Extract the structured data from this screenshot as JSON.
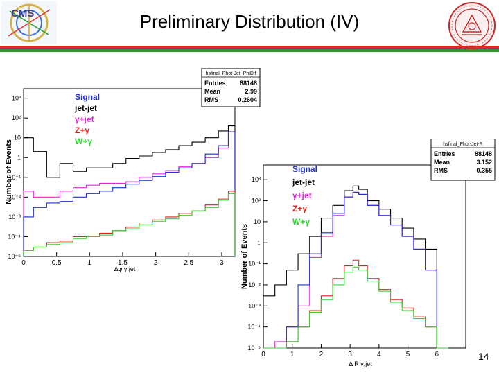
{
  "slide": {
    "title": "Preliminary Distribution (IV)",
    "page_number": "14",
    "logo_left": "CMS",
    "rule_colors": {
      "red": "#d42a2a",
      "green": "#2f9a2a"
    }
  },
  "chart_data": [
    {
      "type": "line",
      "subtype": "step-histogram",
      "title": "",
      "xlabel": "Δφ γ,jet",
      "ylabel": "Number of Events",
      "yscale": "log",
      "xlim": [
        0,
        3.2
      ],
      "ylim": [
        1e-05,
        3000
      ],
      "x_ticks": [
        "0",
        "0.5",
        "1",
        "1.5",
        "2",
        "2.5",
        "3"
      ],
      "x_tick_values": [
        0,
        0.5,
        1,
        1.5,
        2,
        2.5,
        3
      ],
      "y_ticks": [
        "10³",
        "10²",
        "10",
        "1",
        "10⁻¹",
        "10⁻²",
        "10⁻³",
        "10⁻⁴",
        "10⁻⁵"
      ],
      "y_tick_values": [
        1000,
        100,
        10,
        1,
        0.1,
        0.01,
        0.001,
        0.0001,
        1e-05
      ],
      "stats": {
        "name": "hsfinal_Phot-Jet_PhiDif",
        "rows": [
          {
            "label": "Entries",
            "value": "88148"
          },
          {
            "label": "Mean",
            "value": "2.99"
          },
          {
            "label": "RMS",
            "value": "0.2604"
          }
        ]
      },
      "legend": [
        {
          "label": "Signal",
          "color": "#1f2fd0"
        },
        {
          "label": "jet-jet",
          "color": "#000000"
        },
        {
          "label": "γ+jet",
          "color": "#e02ad8"
        },
        {
          "label": "Z+γ",
          "color": "#e02020"
        },
        {
          "label": "W+γ",
          "color": "#2ed02e"
        }
      ],
      "x": [
        0.05,
        0.25,
        0.45,
        0.65,
        0.85,
        1.05,
        1.25,
        1.45,
        1.65,
        1.85,
        2.05,
        2.25,
        2.45,
        2.65,
        2.85,
        3.05,
        3.15
      ],
      "series": [
        {
          "name": "jet-jet",
          "color": "#000000",
          "values": [
            10,
            2,
            0.1,
            0.5,
            0.2,
            0.3,
            0.3,
            0.5,
            0.9,
            1.2,
            1.8,
            2.5,
            4,
            6,
            10,
            22,
            40
          ]
        },
        {
          "name": "γ+jet",
          "color": "#e02ad8",
          "values": [
            0.02,
            0.01,
            0.01,
            0.02,
            0.03,
            0.04,
            0.05,
            0.05,
            0.06,
            0.1,
            0.15,
            0.22,
            0.35,
            0.5,
            1,
            3,
            20
          ]
        },
        {
          "name": "Signal",
          "color": "#1f2fd0",
          "values": [
            0.001,
            0.003,
            0.005,
            0.006,
            0.01,
            0.015,
            0.02,
            0.03,
            0.045,
            0.07,
            0.11,
            0.18,
            0.3,
            0.5,
            1.5,
            4,
            20
          ]
        },
        {
          "name": "Z+γ",
          "color": "#e02020",
          "values": [
            2e-05,
            3e-05,
            5e-05,
            6e-05,
            0.0001,
            0.0001,
            0.00015,
            0.0002,
            0.0003,
            0.0005,
            0.0007,
            0.001,
            0.0015,
            0.002,
            0.004,
            0.008,
            0.02
          ]
        },
        {
          "name": "W+γ",
          "color": "#2ed02e",
          "values": [
            2e-05,
            3e-05,
            4e-05,
            5e-05,
            8e-05,
            0.0001,
            0.00012,
            0.0002,
            0.00025,
            0.0004,
            0.0006,
            0.0008,
            0.0012,
            0.002,
            0.003,
            0.007,
            0.015
          ]
        }
      ]
    },
    {
      "type": "line",
      "subtype": "step-histogram",
      "title": "",
      "xlabel": "Δ R γ,jet",
      "ylabel": "Number of Events",
      "yscale": "log",
      "xlim": [
        0,
        7
      ],
      "ylim": [
        1e-05,
        5000
      ],
      "x_ticks": [
        "0",
        "1",
        "2",
        "3",
        "4",
        "5",
        "6"
      ],
      "x_tick_values": [
        0,
        1,
        2,
        3,
        4,
        5,
        6
      ],
      "y_ticks": [
        "10³",
        "10²",
        "10",
        "1",
        "10⁻¹",
        "10⁻²",
        "10⁻³",
        "10⁻⁴",
        "10⁻⁵"
      ],
      "y_tick_values": [
        1000,
        100,
        10,
        1,
        0.1,
        0.01,
        0.001,
        0.0001,
        1e-05
      ],
      "stats": {
        "name": "hsfinal_Phot-Jet-R",
        "rows": [
          {
            "label": "Entries",
            "value": "88148"
          },
          {
            "label": "Mean",
            "value": "3.152"
          },
          {
            "label": "RMS",
            "value": "0.355"
          }
        ]
      },
      "legend": [
        {
          "label": "Signal",
          "color": "#1f2fd0"
        },
        {
          "label": "jet-jet",
          "color": "#000000"
        },
        {
          "label": "γ+jet",
          "color": "#e02ad8"
        },
        {
          "label": "Z+γ",
          "color": "#e02020"
        },
        {
          "label": "W+γ",
          "color": "#2ed02e"
        }
      ],
      "x": [
        0.2,
        0.6,
        1.0,
        1.4,
        1.8,
        2.2,
        2.6,
        3.0,
        3.2,
        3.4,
        3.8,
        4.2,
        4.6,
        5.0,
        5.4,
        5.8,
        6.2
      ],
      "series": [
        {
          "name": "jet-jet",
          "color": "#000000",
          "values": [
            0.003,
            0.01,
            0.05,
            0.3,
            2,
            15,
            60,
            300,
            500,
            350,
            100,
            40,
            15,
            5,
            1.5,
            0.5,
            1e-05
          ]
        },
        {
          "name": "γ+jet",
          "color": "#e02ad8",
          "values": [
            1e-05,
            2e-05,
            0.0001,
            0.001,
            0.2,
            2,
            20,
            150,
            250,
            200,
            60,
            20,
            7,
            2,
            0.5,
            0.05,
            1e-05
          ]
        },
        {
          "name": "Signal",
          "color": "#1f2fd0",
          "values": [
            1e-05,
            1e-05,
            0.0001,
            0.01,
            0.3,
            3,
            25,
            150,
            250,
            200,
            60,
            20,
            7,
            2,
            0.5,
            0.05,
            1e-05
          ]
        },
        {
          "name": "Z+γ",
          "color": "#e02020",
          "values": [
            1e-05,
            1e-05,
            2e-05,
            0.0001,
            0.0006,
            0.003,
            0.02,
            0.08,
            0.15,
            0.08,
            0.02,
            0.006,
            0.002,
            0.0008,
            0.0003,
            0.0001,
            1e-05
          ]
        },
        {
          "name": "W+γ",
          "color": "#2ed02e",
          "values": [
            1e-05,
            1e-05,
            2e-05,
            0.0001,
            0.0005,
            0.002,
            0.01,
            0.04,
            0.07,
            0.05,
            0.015,
            0.005,
            0.0015,
            0.0006,
            0.00025,
            0.0001,
            1e-05
          ]
        }
      ]
    }
  ]
}
